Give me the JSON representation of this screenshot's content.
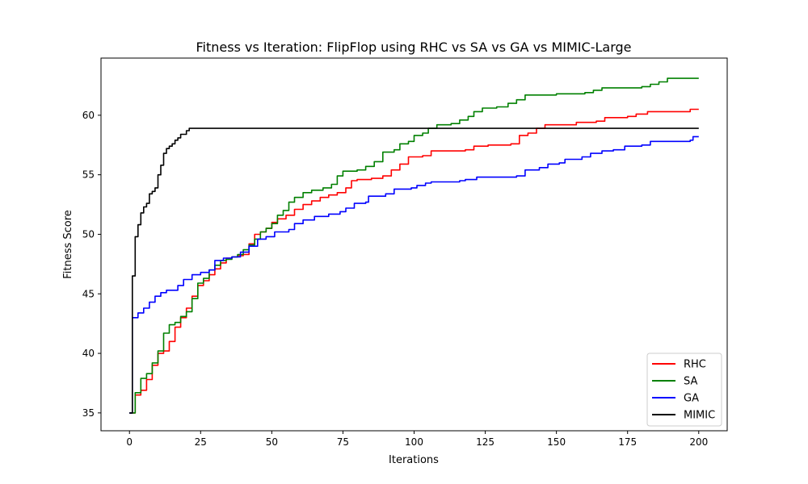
{
  "chart_data": {
    "type": "line",
    "title": "Fitness vs Iteration: FlipFlop using RHC vs SA vs GA vs MIMIC-Large",
    "xlabel": "Iterations",
    "ylabel": "Fitness Score",
    "xlim": [
      -10,
      210
    ],
    "ylim": [
      33.5,
      64.8
    ],
    "xticks": [
      0,
      25,
      50,
      75,
      100,
      125,
      150,
      175,
      200
    ],
    "yticks": [
      35,
      40,
      45,
      50,
      55,
      60
    ],
    "grid": false,
    "legend": "lower-right",
    "series": [
      {
        "name": "RHC",
        "color": "#ff0000",
        "points": [
          [
            0,
            35
          ],
          [
            2,
            36.5
          ],
          [
            4,
            36.9
          ],
          [
            6,
            37.8
          ],
          [
            8,
            39
          ],
          [
            10,
            40
          ],
          [
            12,
            40.2
          ],
          [
            14,
            41
          ],
          [
            16,
            42.2
          ],
          [
            18,
            43
          ],
          [
            20,
            43.8
          ],
          [
            22,
            44.8
          ],
          [
            24,
            45.7
          ],
          [
            26,
            46.1
          ],
          [
            28,
            46.6
          ],
          [
            30,
            47.1
          ],
          [
            32,
            47.6
          ],
          [
            34,
            48
          ],
          [
            36,
            48.1
          ],
          [
            38,
            48.2
          ],
          [
            40,
            48.3
          ],
          [
            42,
            49.2
          ],
          [
            44,
            50
          ],
          [
            46,
            50.2
          ],
          [
            48,
            50.5
          ],
          [
            50,
            51
          ],
          [
            52,
            51.3
          ],
          [
            55,
            51.6
          ],
          [
            58,
            52.1
          ],
          [
            61,
            52.5
          ],
          [
            64,
            52.8
          ],
          [
            67,
            53.1
          ],
          [
            70,
            53.3
          ],
          [
            73,
            53.5
          ],
          [
            76,
            53.9
          ],
          [
            78,
            54.5
          ],
          [
            80,
            54.6
          ],
          [
            85,
            54.7
          ],
          [
            89,
            54.9
          ],
          [
            92,
            55.4
          ],
          [
            95,
            55.9
          ],
          [
            98,
            56.5
          ],
          [
            103,
            56.6
          ],
          [
            106,
            57
          ],
          [
            110,
            57
          ],
          [
            118,
            57.1
          ],
          [
            121,
            57.4
          ],
          [
            126,
            57.5
          ],
          [
            134,
            57.6
          ],
          [
            137,
            58.3
          ],
          [
            140,
            58.5
          ],
          [
            143,
            58.9
          ],
          [
            146,
            59.2
          ],
          [
            150,
            59.2
          ],
          [
            157,
            59.4
          ],
          [
            164,
            59.5
          ],
          [
            167,
            59.8
          ],
          [
            175,
            59.9
          ],
          [
            178,
            60.1
          ],
          [
            182,
            60.3
          ],
          [
            195,
            60.3
          ],
          [
            197,
            60.5
          ],
          [
            200,
            60.5
          ]
        ]
      },
      {
        "name": "SA",
        "color": "#008000",
        "points": [
          [
            0,
            35
          ],
          [
            2,
            36.7
          ],
          [
            4,
            37.9
          ],
          [
            6,
            38.3
          ],
          [
            8,
            39.2
          ],
          [
            10,
            40.2
          ],
          [
            12,
            41.7
          ],
          [
            14,
            42.4
          ],
          [
            16,
            42.6
          ],
          [
            18,
            43.1
          ],
          [
            20,
            43.5
          ],
          [
            22,
            44.6
          ],
          [
            24,
            45.9
          ],
          [
            26,
            46.3
          ],
          [
            28,
            47
          ],
          [
            30,
            47.4
          ],
          [
            32,
            47.8
          ],
          [
            34,
            47.9
          ],
          [
            36,
            48.1
          ],
          [
            38,
            48.3
          ],
          [
            40,
            48.7
          ],
          [
            42,
            49.1
          ],
          [
            44,
            49.6
          ],
          [
            46,
            50.2
          ],
          [
            48,
            50.5
          ],
          [
            50,
            50.9
          ],
          [
            52,
            51.6
          ],
          [
            54,
            52
          ],
          [
            56,
            52.7
          ],
          [
            58,
            53.1
          ],
          [
            61,
            53.5
          ],
          [
            64,
            53.7
          ],
          [
            68,
            53.9
          ],
          [
            71,
            54.2
          ],
          [
            73,
            54.9
          ],
          [
            75,
            55.3
          ],
          [
            80,
            55.4
          ],
          [
            83,
            55.7
          ],
          [
            86,
            56.1
          ],
          [
            89,
            56.9
          ],
          [
            93,
            57.1
          ],
          [
            95,
            57.6
          ],
          [
            98,
            57.8
          ],
          [
            100,
            58.3
          ],
          [
            103,
            58.5
          ],
          [
            105,
            58.9
          ],
          [
            108,
            59.2
          ],
          [
            113,
            59.3
          ],
          [
            116,
            59.6
          ],
          [
            119,
            59.9
          ],
          [
            121,
            60.3
          ],
          [
            124,
            60.6
          ],
          [
            129,
            60.7
          ],
          [
            133,
            61
          ],
          [
            136,
            61.3
          ],
          [
            139,
            61.7
          ],
          [
            150,
            61.8
          ],
          [
            160,
            61.9
          ],
          [
            163,
            62.1
          ],
          [
            166,
            62.3
          ],
          [
            180,
            62.4
          ],
          [
            183,
            62.6
          ],
          [
            186,
            62.8
          ],
          [
            189,
            63.1
          ],
          [
            200,
            63.1
          ]
        ]
      },
      {
        "name": "GA",
        "color": "#0000ff",
        "points": [
          [
            0,
            35
          ],
          [
            1,
            43
          ],
          [
            3,
            43.4
          ],
          [
            5,
            43.8
          ],
          [
            7,
            44.3
          ],
          [
            9,
            44.8
          ],
          [
            11,
            45.1
          ],
          [
            13,
            45.3
          ],
          [
            17,
            45.7
          ],
          [
            19,
            46.2
          ],
          [
            22,
            46.6
          ],
          [
            25,
            46.8
          ],
          [
            28,
            47
          ],
          [
            30,
            47.8
          ],
          [
            33,
            48
          ],
          [
            36,
            48.1
          ],
          [
            39,
            48.5
          ],
          [
            42,
            49
          ],
          [
            45,
            49.6
          ],
          [
            48,
            49.8
          ],
          [
            51,
            50.2
          ],
          [
            56,
            50.4
          ],
          [
            58,
            50.9
          ],
          [
            61,
            51.2
          ],
          [
            65,
            51.5
          ],
          [
            70,
            51.7
          ],
          [
            74,
            51.9
          ],
          [
            76,
            52.2
          ],
          [
            79,
            52.6
          ],
          [
            83,
            52.7
          ],
          [
            84,
            53.2
          ],
          [
            90,
            53.4
          ],
          [
            93,
            53.8
          ],
          [
            99,
            53.9
          ],
          [
            101,
            54.1
          ],
          [
            104,
            54.3
          ],
          [
            106,
            54.4
          ],
          [
            116,
            54.5
          ],
          [
            118,
            54.6
          ],
          [
            122,
            54.8
          ],
          [
            136,
            54.9
          ],
          [
            139,
            55.4
          ],
          [
            144,
            55.6
          ],
          [
            147,
            55.9
          ],
          [
            151,
            56
          ],
          [
            153,
            56.3
          ],
          [
            159,
            56.5
          ],
          [
            162,
            56.8
          ],
          [
            166,
            57
          ],
          [
            170,
            57.1
          ],
          [
            174,
            57.4
          ],
          [
            180,
            57.5
          ],
          [
            183,
            57.8
          ],
          [
            197,
            57.9
          ],
          [
            198,
            58.2
          ],
          [
            200,
            58.2
          ]
        ]
      },
      {
        "name": "MIMIC",
        "color": "#000000",
        "points": [
          [
            0,
            35
          ],
          [
            1,
            46.5
          ],
          [
            2,
            49.8
          ],
          [
            3,
            50.8
          ],
          [
            4,
            51.8
          ],
          [
            5,
            52.3
          ],
          [
            6,
            52.6
          ],
          [
            7,
            53.4
          ],
          [
            8,
            53.6
          ],
          [
            9,
            53.9
          ],
          [
            10,
            55
          ],
          [
            11,
            55.8
          ],
          [
            12,
            56.8
          ],
          [
            13,
            57.2
          ],
          [
            14,
            57.4
          ],
          [
            15,
            57.6
          ],
          [
            16,
            57.9
          ],
          [
            17,
            58.1
          ],
          [
            18,
            58.4
          ],
          [
            20,
            58.7
          ],
          [
            21,
            58.9
          ],
          [
            200,
            58.9
          ]
        ]
      }
    ]
  }
}
